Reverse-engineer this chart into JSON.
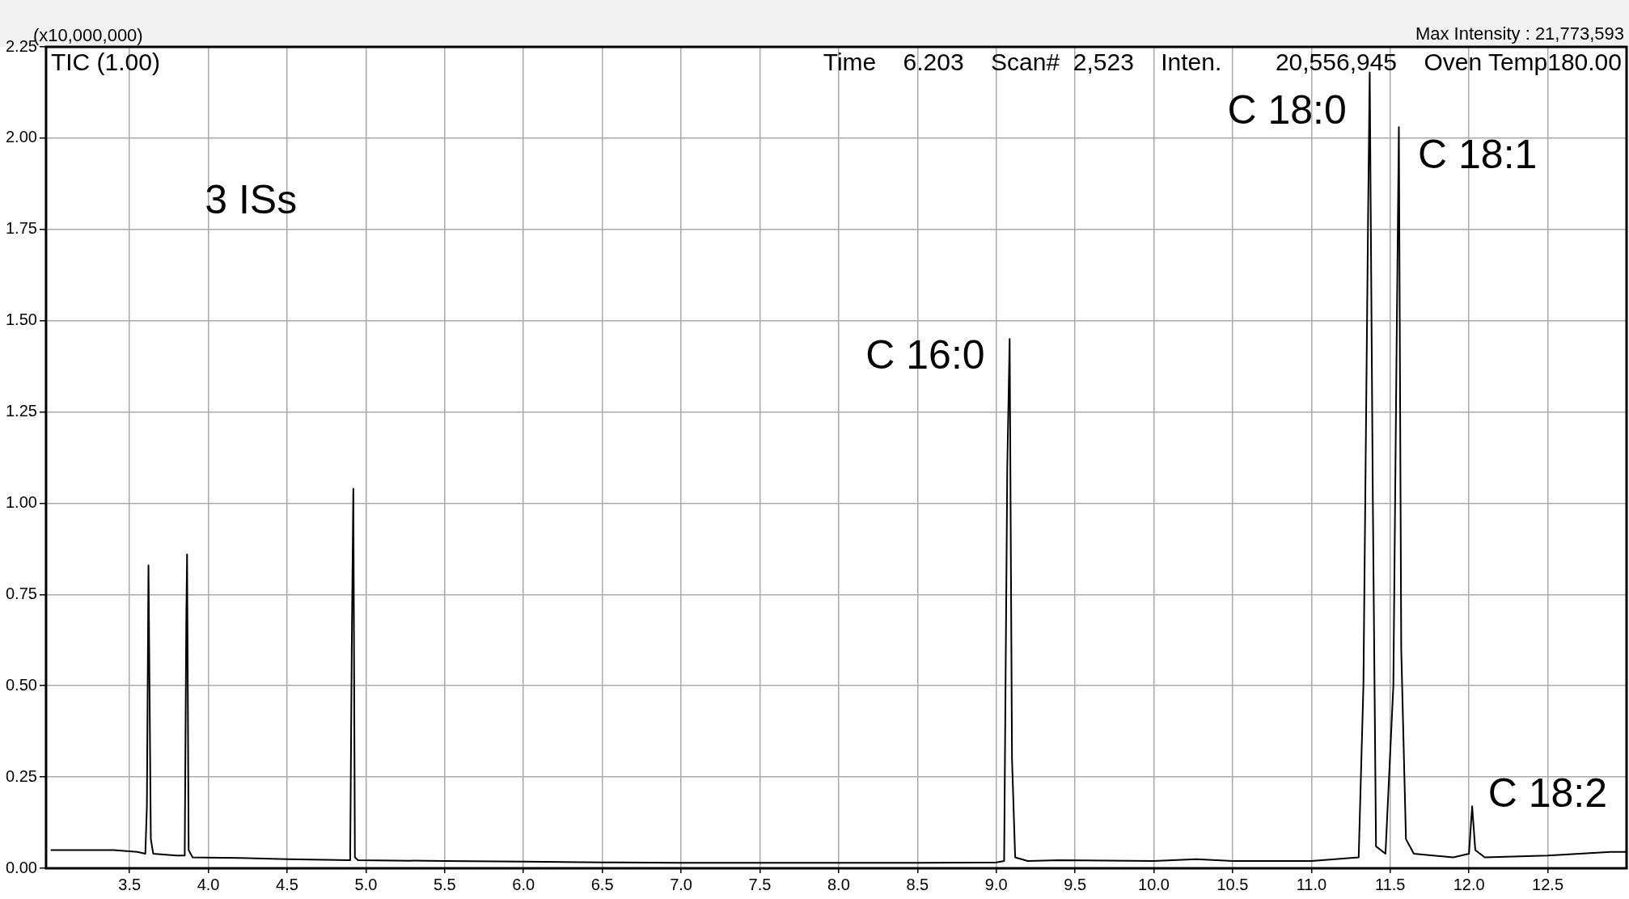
{
  "chart_data": {
    "type": "line",
    "title": "TIC (1.00)",
    "subtitle": "Time    6.203    Scan#  2,523    Inten.        20,556,945    Oven Temp180.00",
    "ylabel": "(x10,000,000)",
    "annotations": [
      "Max Intensity : 21,773,593",
      "3 ISs",
      "C 16:0",
      "C 18:0",
      "C 18:1",
      "C 18:2"
    ],
    "series": [
      {
        "color": "#000000",
        "x": [
          3.0,
          3.2,
          3.4,
          3.55,
          3.6,
          3.61,
          3.62,
          3.635,
          3.65,
          3.8,
          3.85,
          3.86,
          3.865,
          3.875,
          3.9,
          4.2,
          4.5,
          4.9,
          4.91,
          4.92,
          4.93,
          4.95,
          5.5,
          6.0,
          6.5,
          7.0,
          7.5,
          8.0,
          8.5,
          9.0,
          9.05,
          9.07,
          9.085,
          9.1,
          9.12,
          9.2,
          9.4,
          10.0,
          10.27,
          10.5,
          11.0,
          11.3,
          11.33,
          11.36,
          11.37,
          11.39,
          11.41,
          11.47,
          11.52,
          11.54,
          11.555,
          11.57,
          11.6,
          11.65,
          11.9,
          12.0,
          12.02,
          12.04,
          12.1,
          12.5,
          12.7,
          12.9,
          13.0
        ],
        "values": [
          0.05,
          0.05,
          0.05,
          0.045,
          0.04,
          0.17,
          0.83,
          0.08,
          0.04,
          0.035,
          0.035,
          0.68,
          0.86,
          0.05,
          0.03,
          0.028,
          0.025,
          0.022,
          0.6,
          1.04,
          0.03,
          0.022,
          0.02,
          0.018,
          0.016,
          0.015,
          0.015,
          0.015,
          0.015,
          0.016,
          0.02,
          1.1,
          1.45,
          0.3,
          0.03,
          0.02,
          0.022,
          0.02,
          0.025,
          0.02,
          0.02,
          0.03,
          0.5,
          1.8,
          2.18,
          1.0,
          0.06,
          0.04,
          0.5,
          1.4,
          2.03,
          0.6,
          0.08,
          0.04,
          0.03,
          0.04,
          0.17,
          0.05,
          0.03,
          0.035,
          0.04,
          0.045,
          0.045
        ]
      }
    ],
    "xlim": [
      2.97,
      13.0
    ],
    "xticks": [
      3.5,
      {
        "value": 4,
        "label": "4.0"
      },
      4.5,
      {
        "value": 5,
        "label": "5.0"
      },
      5.5,
      {
        "value": 6,
        "label": "6.0"
      },
      6.5,
      {
        "value": 7,
        "label": "7.0"
      },
      7.5,
      {
        "value": 8,
        "label": "8.0"
      },
      8.5,
      {
        "value": 9,
        "label": "9.0"
      },
      9.5,
      {
        "value": 10,
        "label": "10.0"
      },
      10.5,
      {
        "value": 11,
        "label": "11.0"
      },
      11.5,
      {
        "value": 12,
        "label": "12.0"
      },
      12.5
    ],
    "ylim": [
      0,
      2.25
    ],
    "yticks": [
      {
        "value": 0,
        "label": "0.00"
      },
      0.25,
      {
        "value": 0.5,
        "label": "0.50"
      },
      0.75,
      {
        "value": 1,
        "label": "1.00"
      },
      1.25,
      {
        "value": 1.5,
        "label": "1.50"
      },
      1.75,
      {
        "value": 2,
        "label": "2.00"
      },
      2.25
    ],
    "grid": true,
    "legend": false,
    "marker": "none",
    "line_style": "solid"
  }
}
